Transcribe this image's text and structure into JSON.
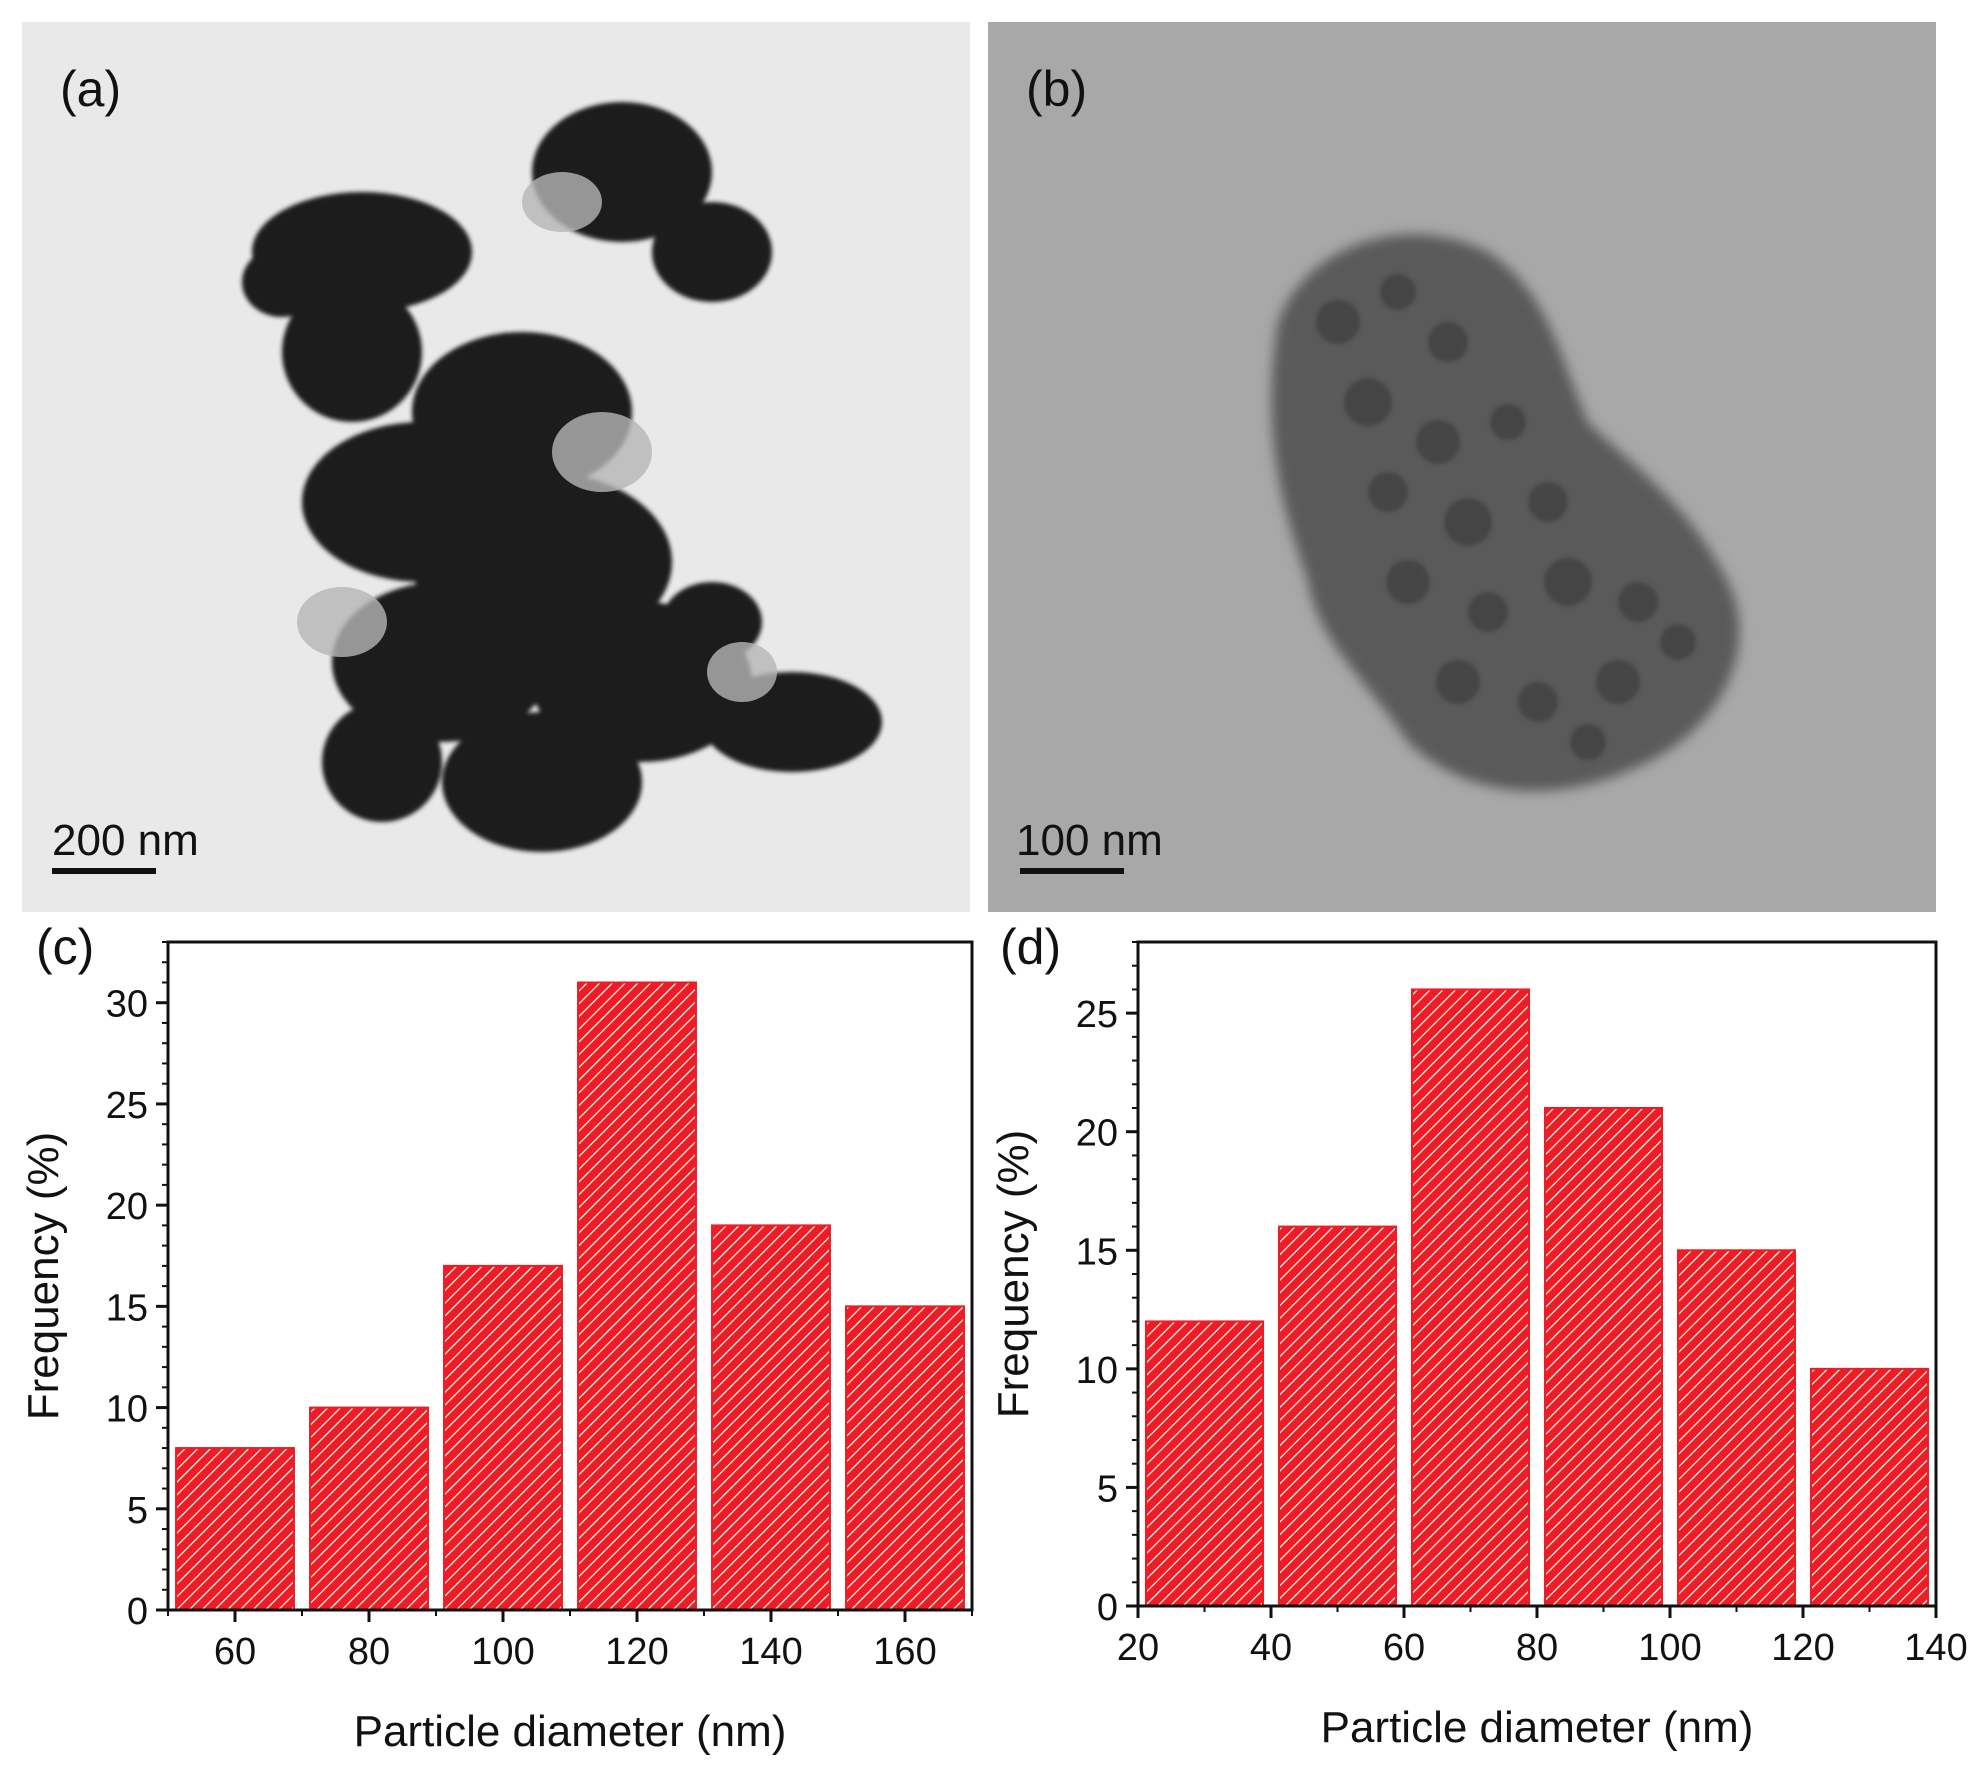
{
  "panels": {
    "a": {
      "label": "(a)",
      "scale_bar_text": "200 nm"
    },
    "b": {
      "label": "(b)",
      "scale_bar_text": "100 nm"
    }
  },
  "chart_data": [
    {
      "panel_label": "(c)",
      "type": "bar",
      "histogram": true,
      "bins": [
        [
          50,
          70
        ],
        [
          70,
          90
        ],
        [
          90,
          110
        ],
        [
          110,
          130
        ],
        [
          130,
          150
        ],
        [
          150,
          170
        ]
      ],
      "values": [
        8,
        10,
        17,
        31,
        19,
        15
      ],
      "xlabel": "Particle diameter (nm)",
      "ylabel": "Frequency (%)",
      "xlim": [
        50,
        170
      ],
      "ylim": [
        0,
        33
      ],
      "xticks": [
        60,
        80,
        100,
        120,
        140,
        160
      ],
      "yticks": [
        0,
        5,
        10,
        15,
        20,
        25,
        30
      ],
      "bar_color": "#ee1c24",
      "bar_fill": "diagonal hatch",
      "grid": false
    },
    {
      "panel_label": "(d)",
      "type": "bar",
      "histogram": true,
      "bins": [
        [
          20,
          40
        ],
        [
          40,
          60
        ],
        [
          60,
          80
        ],
        [
          80,
          100
        ],
        [
          100,
          120
        ],
        [
          120,
          140
        ]
      ],
      "values": [
        12,
        16,
        26,
        21,
        15,
        10
      ],
      "xlabel": "Particle diameter (nm)",
      "ylabel": "Frequency (%)",
      "xlim": [
        20,
        140
      ],
      "ylim": [
        0,
        28
      ],
      "xticks": [
        20,
        40,
        60,
        80,
        100,
        120,
        140
      ],
      "yticks": [
        0,
        5,
        10,
        15,
        20,
        25
      ],
      "bar_color": "#ee1c24",
      "bar_fill": "diagonal hatch",
      "grid": false
    }
  ]
}
